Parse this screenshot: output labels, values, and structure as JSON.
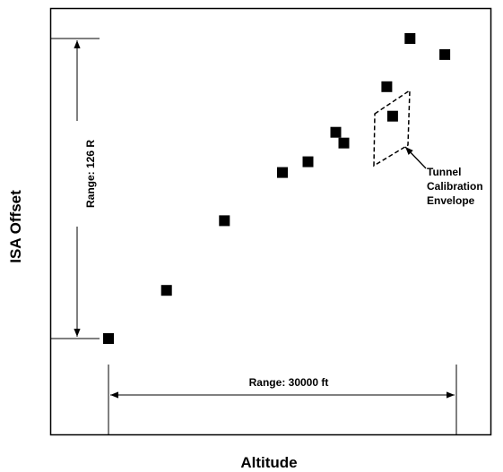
{
  "chart_data": {
    "type": "scatter",
    "title": "",
    "xlabel": "Altitude",
    "ylabel": "ISA Offset",
    "grid": false,
    "legend": "none",
    "marker_color": "#000000",
    "series": [
      {
        "x": [
          0,
          5000,
          10000,
          15000,
          17200,
          19600,
          20300,
          24000,
          24500,
          26000,
          29000
        ],
        "y": [
          0,
          9,
          22,
          31,
          33,
          38.5,
          36.5,
          47,
          41.5,
          56,
          53
        ]
      }
    ],
    "xlim": [
      0,
      30000
    ],
    "ylim": [
      0,
      56
    ],
    "annotations": {
      "y_range": "Range: 126 R",
      "x_range": "Range:  30000 ft",
      "envelope_label": [
        "Tunnel",
        "Calibration",
        "Envelope"
      ]
    }
  }
}
